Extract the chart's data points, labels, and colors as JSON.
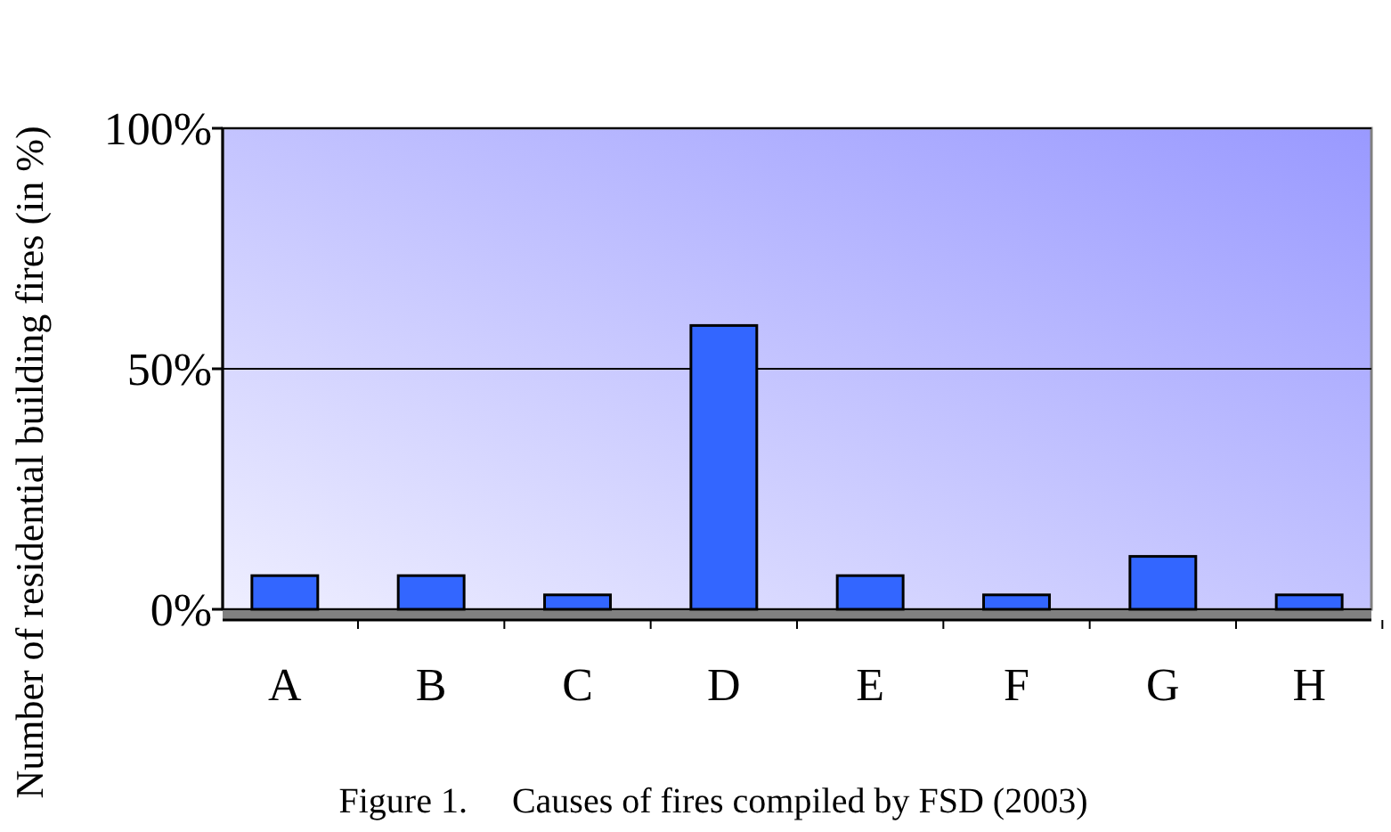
{
  "chart_data": {
    "type": "bar",
    "ylabel": "Number of residential building fires (in %)",
    "categories": [
      "A",
      "B",
      "C",
      "D",
      "E",
      "F",
      "G",
      "H"
    ],
    "values": [
      7,
      7,
      3,
      59,
      7,
      3,
      11,
      3
    ],
    "color": "#3366ff",
    "ylim": [
      0,
      100
    ],
    "yticks": [
      {
        "value": 0,
        "label": "0%"
      },
      {
        "value": 50,
        "label": "50%"
      },
      {
        "value": 100,
        "label": "100%"
      }
    ],
    "grid": "y",
    "annotations": [
      "Figure 1.     Causes of fires compiled by FSD (2003)"
    ]
  }
}
